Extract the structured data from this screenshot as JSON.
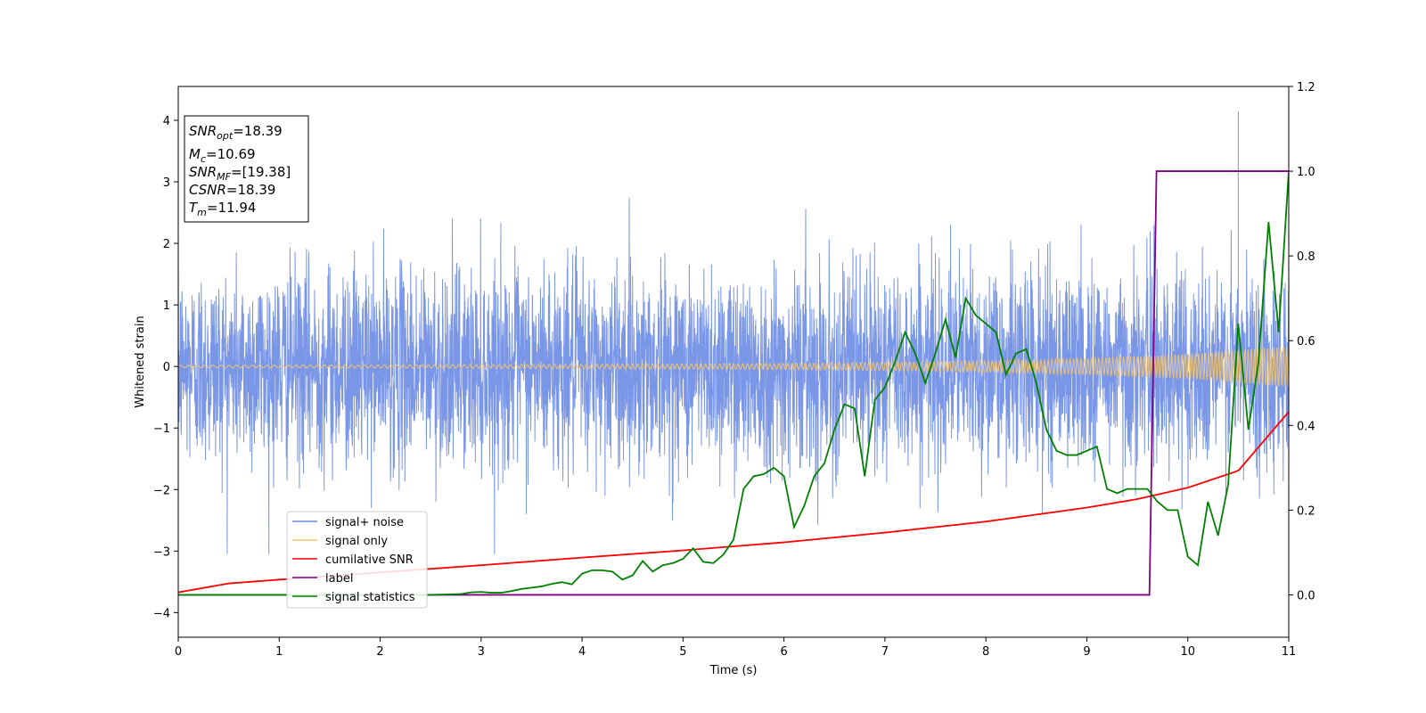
{
  "chart_data": {
    "type": "line",
    "xlabel": "Time (s)",
    "ylabel": "Whitened strain",
    "xlim": [
      0,
      11
    ],
    "ylim_left": [
      -4.4,
      4.55
    ],
    "ylim_right": [
      -0.1,
      1.2
    ],
    "x_ticks": [
      0,
      1,
      2,
      3,
      4,
      5,
      6,
      7,
      8,
      9,
      10,
      11
    ],
    "y_ticks_left": [
      -4,
      -3,
      -2,
      -1,
      0,
      1,
      2,
      3,
      4
    ],
    "y_ticks_right": [
      0.0,
      0.2,
      0.4,
      0.6,
      0.8,
      1.0,
      1.2
    ],
    "grid": false,
    "legend_position": "lower-left",
    "colors": {
      "signal_noise": "#6b8be4",
      "signal_only": "#f5c46a",
      "cumulative_snr": "#ff0000",
      "label": "#800080",
      "signal_statistics": "#008000"
    },
    "series": [
      {
        "name": "signal+ noise",
        "axis": "left",
        "description_values": {
          "std_approx": 0.8,
          "peak_max": 4.15,
          "peak_min": -3.1
        }
      },
      {
        "name": "signal only",
        "axis": "left",
        "envelope": {
          "x": [
            0,
            2,
            4,
            6,
            7,
            8,
            9,
            10,
            11
          ],
          "amplitude": [
            0.02,
            0.025,
            0.035,
            0.05,
            0.065,
            0.09,
            0.13,
            0.2,
            0.33
          ]
        }
      },
      {
        "name": "cumilative SNR",
        "axis": "right",
        "x": [
          0,
          0.5,
          1,
          2,
          3,
          4,
          5,
          6,
          7,
          8,
          9,
          9.5,
          10,
          10.5,
          11
        ],
        "y": [
          0.006,
          0.027,
          0.036,
          0.053,
          0.07,
          0.088,
          0.105,
          0.124,
          0.147,
          0.173,
          0.206,
          0.226,
          0.253,
          0.293,
          0.432
        ]
      },
      {
        "name": "label",
        "axis": "right",
        "x": [
          0,
          9.62,
          9.69,
          11
        ],
        "y": [
          0,
          0,
          1,
          1
        ]
      },
      {
        "name": "signal statistics",
        "axis": "right",
        "x": [
          0,
          0.5,
          1,
          1.5,
          2,
          2.5,
          2.8,
          2.9,
          3.0,
          3.1,
          3.2,
          3.3,
          3.4,
          3.5,
          3.6,
          3.7,
          3.8,
          3.9,
          4.0,
          4.1,
          4.2,
          4.3,
          4.4,
          4.5,
          4.6,
          4.7,
          4.8,
          4.9,
          5.0,
          5.1,
          5.2,
          5.3,
          5.4,
          5.5,
          5.6,
          5.7,
          5.8,
          5.9,
          6.0,
          6.1,
          6.2,
          6.3,
          6.4,
          6.5,
          6.6,
          6.7,
          6.8,
          6.9,
          7.0,
          7.1,
          7.2,
          7.3,
          7.4,
          7.5,
          7.6,
          7.7,
          7.8,
          7.9,
          8.0,
          8.1,
          8.2,
          8.3,
          8.4,
          8.5,
          8.6,
          8.7,
          8.8,
          8.9,
          9.0,
          9.1,
          9.2,
          9.3,
          9.4,
          9.5,
          9.6,
          9.7,
          9.8,
          9.9,
          10.0,
          10.1,
          10.2,
          10.3,
          10.4,
          10.5,
          10.6,
          10.7,
          10.8,
          10.9,
          11.0
        ],
        "y": [
          0.0,
          0.0,
          0.0,
          0.0,
          0.0,
          0.0,
          0.002,
          0.006,
          0.007,
          0.005,
          0.005,
          0.009,
          0.014,
          0.017,
          0.02,
          0.026,
          0.03,
          0.025,
          0.05,
          0.058,
          0.058,
          0.055,
          0.036,
          0.046,
          0.08,
          0.055,
          0.07,
          0.075,
          0.085,
          0.11,
          0.078,
          0.075,
          0.095,
          0.13,
          0.25,
          0.28,
          0.285,
          0.3,
          0.28,
          0.16,
          0.21,
          0.28,
          0.31,
          0.39,
          0.45,
          0.44,
          0.28,
          0.46,
          0.49,
          0.55,
          0.62,
          0.57,
          0.5,
          0.57,
          0.65,
          0.56,
          0.7,
          0.66,
          0.64,
          0.62,
          0.52,
          0.57,
          0.58,
          0.5,
          0.39,
          0.34,
          0.33,
          0.33,
          0.34,
          0.35,
          0.25,
          0.24,
          0.25,
          0.25,
          0.25,
          0.22,
          0.2,
          0.2,
          0.09,
          0.07,
          0.22,
          0.14,
          0.26,
          0.64,
          0.39,
          0.55,
          0.88,
          0.62,
          1.0
        ]
      }
    ],
    "annotations": {
      "snr_opt": "=18.39",
      "mc": "=10.69",
      "snr_mf": "=[19.38]",
      "csnr": "=18.39",
      "tm": "=11.94"
    }
  }
}
